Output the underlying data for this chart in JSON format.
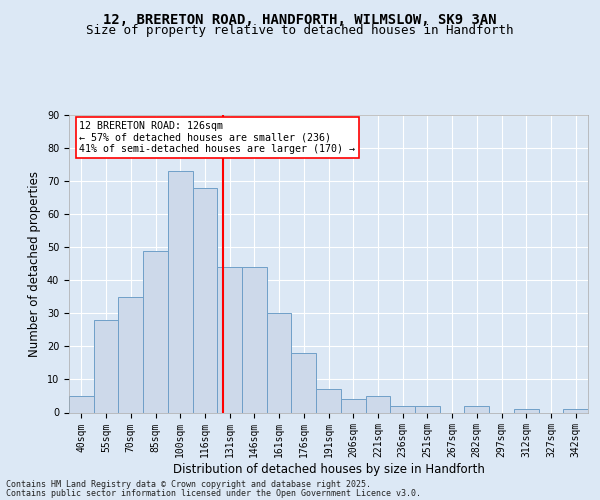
{
  "title_line1": "12, BRERETON ROAD, HANDFORTH, WILMSLOW, SK9 3AN",
  "title_line2": "Size of property relative to detached houses in Handforth",
  "xlabel": "Distribution of detached houses by size in Handforth",
  "ylabel": "Number of detached properties",
  "categories": [
    "40sqm",
    "55sqm",
    "70sqm",
    "85sqm",
    "100sqm",
    "116sqm",
    "131sqm",
    "146sqm",
    "161sqm",
    "176sqm",
    "191sqm",
    "206sqm",
    "221sqm",
    "236sqm",
    "251sqm",
    "267sqm",
    "282sqm",
    "297sqm",
    "312sqm",
    "327sqm",
    "342sqm"
  ],
  "values": [
    5,
    28,
    35,
    49,
    73,
    68,
    44,
    44,
    30,
    18,
    7,
    4,
    5,
    2,
    2,
    0,
    2,
    0,
    1,
    0,
    1
  ],
  "bar_color": "#cdd9ea",
  "bar_edge_color": "#6f9fc8",
  "vline_x": 6.0,
  "vline_color": "red",
  "annotation_text": "12 BRERETON ROAD: 126sqm\n← 57% of detached houses are smaller (236)\n41% of semi-detached houses are larger (170) →",
  "annotation_box_color": "white",
  "annotation_box_edge": "red",
  "ylim": [
    0,
    90
  ],
  "yticks": [
    0,
    10,
    20,
    30,
    40,
    50,
    60,
    70,
    80,
    90
  ],
  "footer_line1": "Contains HM Land Registry data © Crown copyright and database right 2025.",
  "footer_line2": "Contains public sector information licensed under the Open Government Licence v3.0.",
  "bg_color": "#dce8f5",
  "plot_bg_color": "#dce8f5",
  "grid_color": "white",
  "title_fontsize": 10,
  "subtitle_fontsize": 9,
  "tick_fontsize": 7,
  "label_fontsize": 8.5
}
